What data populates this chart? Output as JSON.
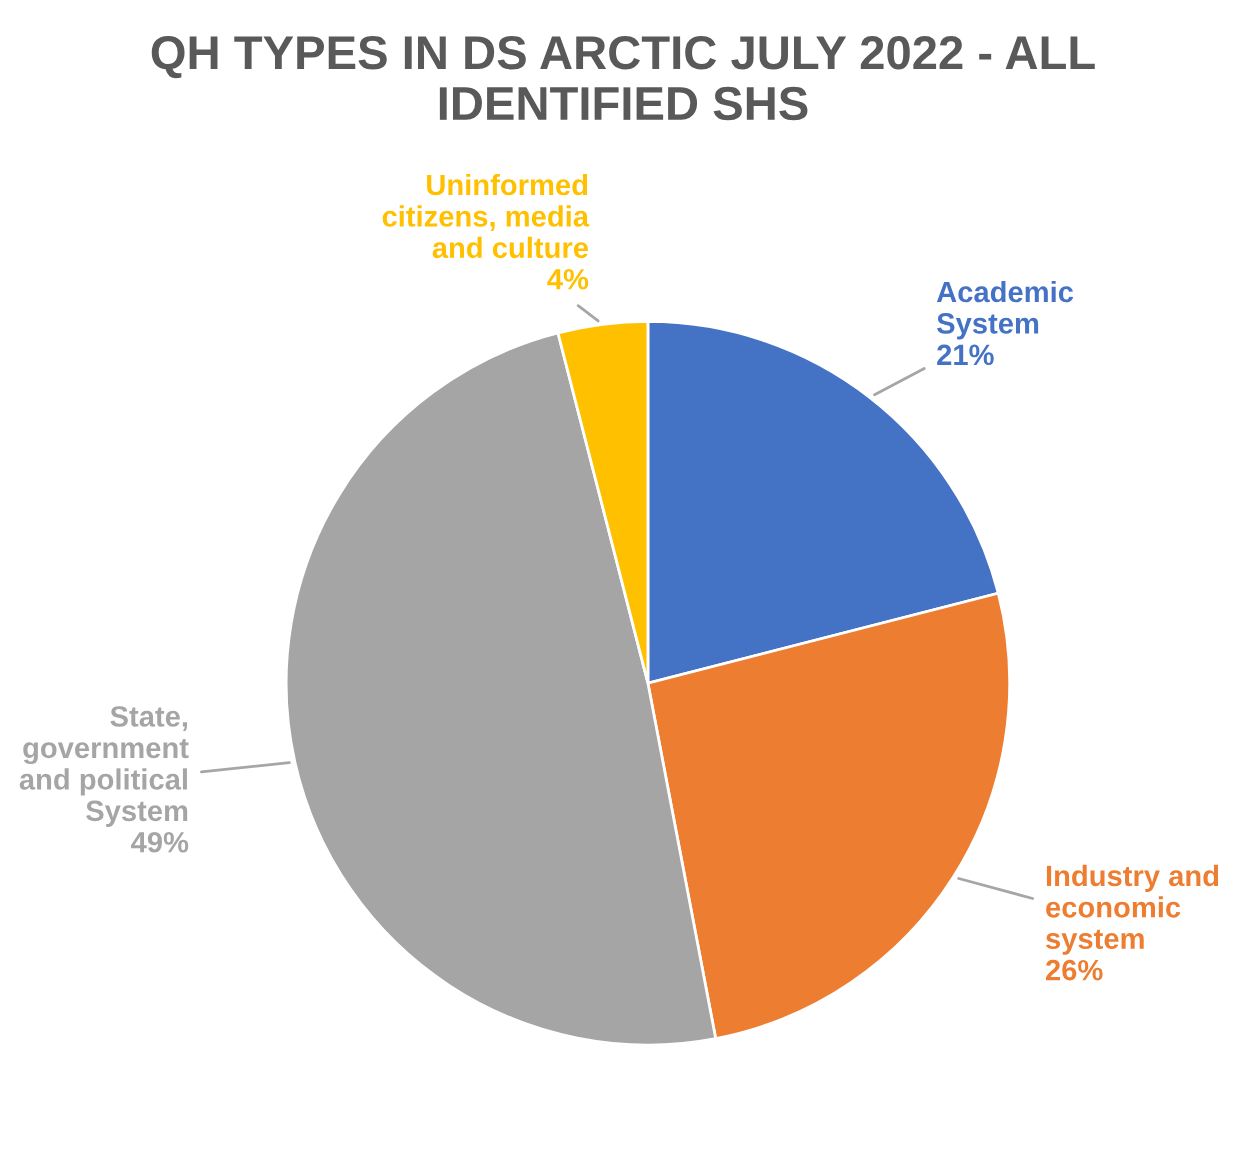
{
  "chart_data": {
    "type": "pie",
    "title": "QH TYPES IN DS ARCTIC JULY 2022 - ALL\nIDENTIFIED SHS",
    "categories": [
      "Academic\nSystem",
      "Industry and\neconomic\nsystem",
      "State,\ngovernment\nand political\nSystem",
      "Uninformed\ncitizens, media\nand culture"
    ],
    "values": [
      21,
      26,
      49,
      4
    ],
    "value_labels": [
      "21%",
      "26%",
      "49%",
      "4%"
    ],
    "colors": [
      "#4472c4",
      "#ed7d31",
      "#a5a5a5",
      "#ffc000"
    ]
  }
}
